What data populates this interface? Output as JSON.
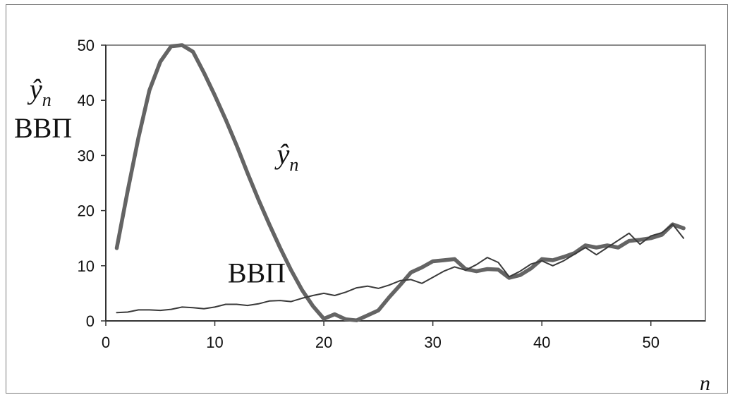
{
  "chart_data": {
    "type": "line",
    "title": "",
    "xlabel": "n",
    "ylabel": "",
    "xlim": [
      0,
      55
    ],
    "ylim": [
      0,
      50
    ],
    "xticks": [
      0,
      10,
      20,
      30,
      40,
      50
    ],
    "yticks": [
      0,
      10,
      20,
      30,
      40,
      50
    ],
    "grid": false,
    "legend": "none",
    "annotations": [
      {
        "text": "ŷ",
        "subscript": "n",
        "x": 15.7,
        "y": 28.5
      },
      {
        "text": "ВВП",
        "x": 11.7,
        "y": 9.5
      }
    ],
    "y_axis_text": [
      {
        "text": "ŷ",
        "subscript": "n"
      },
      {
        "text": "ВВП"
      }
    ],
    "series": [
      {
        "name": "ŷn",
        "color": "#646464",
        "style": "thick",
        "x": [
          1,
          2,
          3,
          4,
          5,
          6,
          7,
          8,
          9,
          10,
          11,
          12,
          13,
          14,
          15,
          16,
          17,
          18,
          19,
          20,
          21,
          22,
          23,
          24,
          25,
          26,
          27,
          28,
          29,
          30,
          31,
          32,
          33,
          34,
          35,
          36,
          37,
          38,
          39,
          40,
          41,
          42,
          43,
          44,
          45,
          46,
          47,
          48,
          49,
          50,
          51,
          52,
          53
        ],
        "values": [
          13.2,
          23.5,
          33.3,
          41.8,
          47.0,
          49.8,
          50.0,
          48.8,
          45.0,
          40.9,
          36.5,
          31.8,
          26.8,
          22.0,
          17.5,
          13.2,
          9.2,
          5.6,
          2.7,
          0.4,
          1.2,
          0.3,
          0.1,
          1.0,
          1.9,
          4.3,
          6.5,
          8.8,
          9.7,
          10.8,
          11.0,
          11.2,
          9.4,
          9.0,
          9.4,
          9.3,
          7.8,
          8.3,
          9.5,
          11.2,
          11.0,
          11.6,
          12.3,
          13.7,
          13.3,
          13.7,
          13.3,
          14.5,
          14.7,
          15.0,
          15.6,
          17.5,
          16.8
        ]
      },
      {
        "name": "ВВП",
        "color": "#3a3a3a",
        "style": "thin",
        "x": [
          1,
          2,
          3,
          4,
          5,
          6,
          7,
          8,
          9,
          10,
          11,
          12,
          13,
          14,
          15,
          16,
          17,
          18,
          19,
          20,
          21,
          22,
          23,
          24,
          25,
          26,
          27,
          28,
          29,
          30,
          31,
          32,
          33,
          34,
          35,
          36,
          37,
          38,
          39,
          40,
          41,
          42,
          43,
          44,
          45,
          46,
          47,
          48,
          49,
          50,
          51,
          52,
          53
        ],
        "values": [
          1.5,
          1.6,
          2.0,
          2.0,
          1.9,
          2.1,
          2.5,
          2.4,
          2.2,
          2.5,
          3.0,
          3.0,
          2.8,
          3.1,
          3.6,
          3.7,
          3.5,
          4.1,
          4.6,
          5.0,
          4.6,
          5.2,
          6.0,
          6.3,
          5.9,
          6.5,
          7.3,
          7.5,
          6.8,
          7.9,
          9.0,
          9.8,
          9.2,
          10.2,
          11.5,
          10.6,
          8.0,
          9.0,
          10.3,
          10.9,
          10.0,
          10.9,
          12.1,
          13.3,
          12.0,
          13.3,
          14.6,
          15.9,
          13.9,
          15.4,
          16.0,
          17.5,
          15.0
        ]
      }
    ]
  }
}
